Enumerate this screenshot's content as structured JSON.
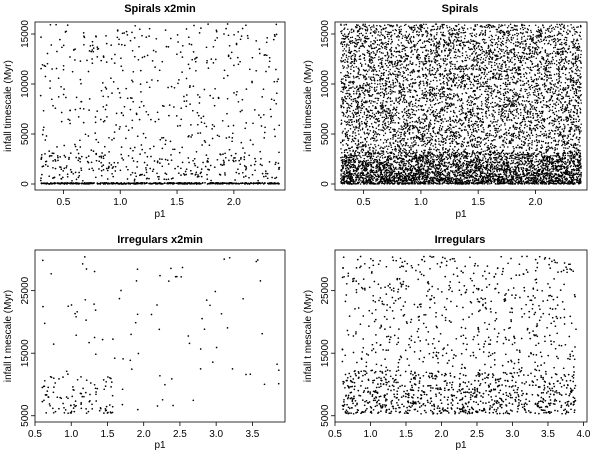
{
  "chart_data": [
    {
      "id": "p1",
      "type": "scatter",
      "title": "Spirals x2min",
      "xlabel": "p1",
      "ylabel": "infall timescale (Myr)",
      "xlim": [
        0.25,
        2.45
      ],
      "ylim": [
        -600,
        16200
      ],
      "xticks": [
        0.5,
        1.0,
        1.5,
        2.0
      ],
      "xtick_labels": [
        "0.5",
        "1.0",
        "1.5",
        "2.0"
      ],
      "yticks": [
        0,
        5000,
        10000,
        15000
      ],
      "ytick_labels": [
        "0",
        "5000",
        "10000",
        "15000"
      ],
      "x_range": [
        0.3,
        2.4
      ],
      "point_count": 1200,
      "distribution": "dense band near 0 with sparse scatter up to 16000; denser below 3000"
    },
    {
      "id": "p2",
      "type": "scatter",
      "title": "Spirals",
      "xlabel": "p1",
      "ylabel": "infall timescale (Myr)",
      "xlim": [
        0.25,
        2.45
      ],
      "ylim": [
        -600,
        16200
      ],
      "xticks": [
        0.5,
        1.0,
        1.5,
        2.0
      ],
      "xtick_labels": [
        "0.5",
        "1.0",
        "1.5",
        "2.0"
      ],
      "yticks": [
        0,
        5000,
        10000,
        15000
      ],
      "ytick_labels": [
        "0",
        "5000",
        "10000",
        "15000"
      ],
      "x_range": [
        0.3,
        2.4
      ],
      "point_count": 9000,
      "distribution": "densely filled across full range, densest below 3000"
    },
    {
      "id": "p3",
      "type": "scatter",
      "title": "Irregulars x2min",
      "xlabel": "p1",
      "ylabel": "infall t mescale (Myr)",
      "xlim": [
        0.5,
        3.95
      ],
      "ylim": [
        4000,
        31500
      ],
      "xticks": [
        0.5,
        1.0,
        1.5,
        2.0,
        2.5,
        3.0,
        3.5
      ],
      "xtick_labels": [
        "0.5",
        "1.0",
        "1.5",
        "2.0",
        "2.5",
        "3.0",
        "3.5"
      ],
      "yticks": [
        5000,
        15000,
        25000
      ],
      "ytick_labels": [
        "5000",
        "15000",
        "25000"
      ],
      "x_range": [
        0.6,
        3.9
      ],
      "point_count": 190,
      "distribution": "sparse; concentrated at low p1 (0.6–1.6) and low timescale (5000–10000)"
    },
    {
      "id": "p4",
      "type": "scatter",
      "title": "Irregulars",
      "xlabel": "p1",
      "ylabel": "infall t mescale (Myr)",
      "xlim": [
        0.5,
        4.05
      ],
      "ylim": [
        4000,
        31500
      ],
      "xticks": [
        0.5,
        1.0,
        1.5,
        2.0,
        2.5,
        3.0,
        3.5,
        4.0
      ],
      "xtick_labels": [
        "0.5",
        "1.0",
        "1.5",
        "2.0",
        "2.5",
        "3.0",
        "3.5",
        "4.0"
      ],
      "yticks": [
        5000,
        15000,
        25000
      ],
      "ytick_labels": [
        "5000",
        "15000",
        "25000"
      ],
      "x_range": [
        0.6,
        3.9
      ],
      "point_count": 1500,
      "distribution": "moderately dense across full range, densest at 5000–12000"
    }
  ]
}
